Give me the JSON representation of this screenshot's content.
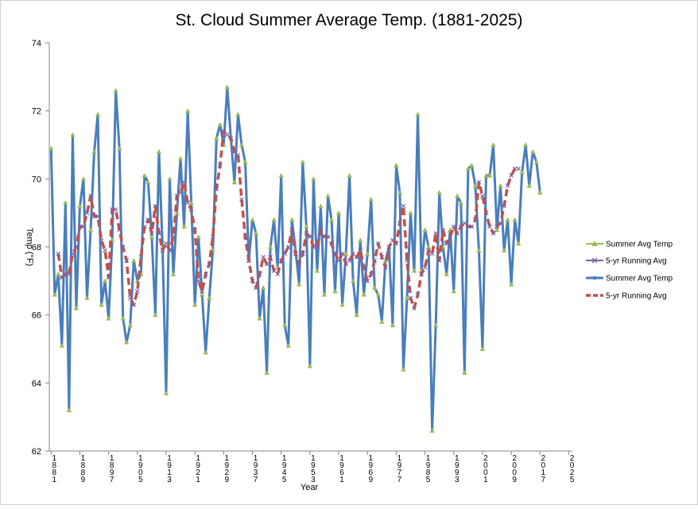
{
  "chart_data": {
    "type": "line",
    "title": "St. Cloud Summer Average Temp. (1881-2025)",
    "xlabel": "Year",
    "ylabel": "Temp (°F)",
    "ylim": [
      62,
      74
    ],
    "yticks": [
      62,
      64,
      66,
      68,
      70,
      72,
      74
    ],
    "xticks": [
      1881,
      1889,
      1897,
      1905,
      1913,
      1921,
      1929,
      1937,
      1945,
      1953,
      1961,
      1969,
      1977,
      1985,
      1993,
      2001,
      2009,
      2017,
      2025
    ],
    "legend_position": "right",
    "grid": false,
    "colors": {
      "summer_avg": "#4a7ebb",
      "summer_avg_marker": "#9bbb59",
      "running_avg": "#c0504d",
      "running_avg_marker": "#8064a2"
    },
    "legend": [
      {
        "name": "Summer Avg Temp",
        "style": "green-triangle"
      },
      {
        "name": "5-yr Running Avg",
        "style": "purple-x"
      },
      {
        "name": "Summer Avg Temp",
        "style": "blue-line"
      },
      {
        "name": "5-yr Running Avg",
        "style": "red-dashed"
      }
    ],
    "series": [
      {
        "name": "Summer Avg Temp",
        "x_start": 1881,
        "values": [
          70.9,
          66.6,
          67.2,
          65.1,
          69.3,
          63.2,
          71.3,
          66.2,
          69.2,
          70.0,
          66.5,
          68.5,
          70.8,
          71.9,
          66.3,
          67.0,
          65.9,
          68.2,
          72.6,
          70.9,
          65.9,
          65.2,
          65.7,
          67.6,
          67.0,
          67.2,
          70.1,
          69.9,
          68.3,
          66.0,
          70.8,
          68.0,
          63.7,
          70.0,
          67.2,
          69.0,
          70.6,
          68.6,
          72.0,
          69.3,
          66.3,
          68.3,
          66.6,
          64.9,
          66.5,
          67.9,
          71.2,
          71.6,
          71.0,
          72.7,
          71.2,
          69.9,
          71.9,
          71.0,
          70.5,
          67.6,
          68.8,
          68.4,
          65.9,
          66.8,
          64.3,
          68.0,
          68.8,
          67.4,
          70.1,
          65.7,
          65.1,
          68.8,
          67.9,
          66.9,
          70.5,
          68.6,
          64.5,
          70.0,
          67.3,
          69.2,
          66.6,
          69.5,
          68.8,
          66.7,
          69.0,
          66.3,
          67.8,
          70.1,
          67.0,
          66.0,
          68.2,
          66.6,
          67.8,
          69.4,
          66.8,
          66.6,
          65.8,
          67.6,
          68.0,
          65.7,
          70.4,
          69.6,
          64.4,
          66.5,
          69.0,
          67.3,
          71.9,
          67.3,
          68.5,
          68.0,
          62.6,
          65.7,
          69.6,
          68.0,
          67.2,
          68.5,
          66.7,
          69.5,
          69.3,
          64.3,
          70.3,
          70.4,
          69.8,
          67.9,
          65.0,
          70.1,
          70.1,
          71.0,
          68.5,
          69.8,
          67.9,
          68.8,
          66.9,
          68.8,
          68.1,
          70.2,
          71.0,
          69.8,
          70.8,
          70.5,
          69.6
        ]
      },
      {
        "name": "5-yr Running Avg",
        "x_start": 1883,
        "values": [
          67.8,
          67.1,
          67.2,
          67.2,
          67.8,
          68.0,
          68.6,
          68.6,
          69.0,
          69.5,
          68.9,
          68.9,
          68.2,
          67.9,
          67.1,
          69.1,
          69.1,
          68.5,
          68.0,
          67.6,
          66.5,
          66.3,
          66.7,
          67.7,
          68.6,
          68.8,
          68.4,
          69.2,
          68.4,
          67.9,
          68.1,
          67.9,
          68.3,
          69.5,
          69.6,
          69.9,
          69.3,
          69.1,
          68.5,
          67.0,
          66.7,
          67.2,
          67.5,
          68.3,
          69.7,
          70.4,
          71.4,
          71.3,
          71.2,
          70.8,
          70.7,
          69.4,
          68.3,
          67.6,
          67.0,
          66.8,
          67.2,
          67.7,
          67.5,
          67.7,
          67.3,
          67.2,
          67.6,
          67.8,
          68.0,
          68.5,
          67.8,
          67.5,
          67.8,
          68.4,
          68.3,
          68.0,
          68.0,
          68.5,
          68.3,
          68.3,
          68.1,
          67.8,
          67.6,
          67.8,
          67.5,
          67.6,
          67.8,
          67.7,
          67.9,
          67.4,
          67.0,
          67.2,
          67.6,
          68.1,
          67.7,
          67.4,
          68.0,
          68.2,
          68.1,
          68.7,
          69.2,
          67.6,
          66.5,
          66.2,
          66.6,
          67.2,
          67.4,
          67.9,
          67.8,
          68.4,
          67.6,
          68.5,
          68.1,
          68.3,
          68.6,
          68.4,
          68.6,
          68.7,
          68.6,
          68.6,
          68.8,
          69.9,
          69.5,
          69.0,
          68.6,
          68.4,
          68.6,
          68.7,
          69.2,
          69.8,
          70.1,
          70.3,
          70.3
        ]
      }
    ]
  }
}
